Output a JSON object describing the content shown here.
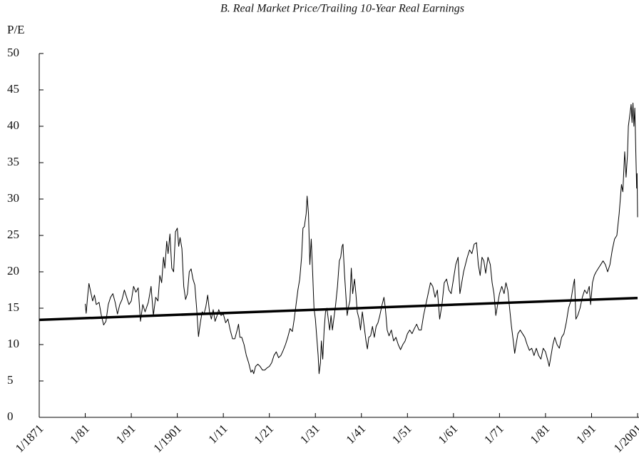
{
  "chart_data": {
    "type": "line",
    "title": "B. Real Market Price/Trailing 10-Year Real Earnings",
    "y_label": "P/E",
    "xlim": [
      1871,
      2001
    ],
    "ylim": [
      0,
      50
    ],
    "yticks": [
      0,
      5,
      10,
      15,
      20,
      25,
      30,
      35,
      40,
      45,
      50
    ],
    "xticks": [
      {
        "value": 1871,
        "label": "1/1871"
      },
      {
        "value": 1881,
        "label": "1/81"
      },
      {
        "value": 1891,
        "label": "1/91"
      },
      {
        "value": 1901,
        "label": "1/1901"
      },
      {
        "value": 1911,
        "label": "1/11"
      },
      {
        "value": 1921,
        "label": "1/21"
      },
      {
        "value": 1931,
        "label": "1/31"
      },
      {
        "value": 1941,
        "label": "1/41"
      },
      {
        "value": 1951,
        "label": "1/51"
      },
      {
        "value": 1961,
        "label": "1/61"
      },
      {
        "value": 1971,
        "label": "1/71"
      },
      {
        "value": 1981,
        "label": "1/81"
      },
      {
        "value": 1991,
        "label": "1/91"
      },
      {
        "value": 2001,
        "label": "1/2001"
      }
    ],
    "series": [
      {
        "color": "#000000",
        "width": 1,
        "x": [
          1881.0,
          1881.2,
          1881.5,
          1881.8,
          1882.2,
          1882.6,
          1883,
          1883.4,
          1884,
          1884.5,
          1885,
          1885.5,
          1886,
          1886.5,
          1887,
          1887.5,
          1888,
          1888.5,
          1889,
          1889.5,
          1890,
          1890.5,
          1891,
          1891.5,
          1892,
          1892.5,
          1893,
          1893.5,
          1894,
          1894.7,
          1895.3,
          1895.8,
          1896.3,
          1896.8,
          1897.2,
          1897.6,
          1898,
          1898.3,
          1898.7,
          1899,
          1899.4,
          1899.8,
          1900.2,
          1900.6,
          1901,
          1901.3,
          1901.6,
          1902,
          1902.4,
          1902.8,
          1903.2,
          1903.6,
          1904,
          1904.4,
          1904.8,
          1905.2,
          1905.6,
          1906,
          1906.4,
          1906.8,
          1907.2,
          1907.6,
          1908,
          1908.4,
          1908.8,
          1909.2,
          1909.6,
          1910,
          1910.5,
          1911,
          1911.5,
          1912,
          1912.5,
          1913,
          1913.5,
          1914,
          1914.3,
          1914.6,
          1915,
          1915.5,
          1916,
          1916.5,
          1917,
          1917.3,
          1917.6,
          1918,
          1918.5,
          1919,
          1919.5,
          1920,
          1920.5,
          1921,
          1921.5,
          1922,
          1922.5,
          1923,
          1923.5,
          1924,
          1924.5,
          1925,
          1925.5,
          1926,
          1926.4,
          1926.8,
          1927.2,
          1927.6,
          1928,
          1928.3,
          1928.6,
          1929,
          1929.2,
          1929.5,
          1929.8,
          1930.1,
          1930.4,
          1930.7,
          1931,
          1931.3,
          1931.6,
          1931.8,
          1932.1,
          1932.3,
          1932.6,
          1932.9,
          1933.2,
          1933.5,
          1933.8,
          1934.1,
          1934.4,
          1934.7,
          1935,
          1935.4,
          1935.8,
          1936.2,
          1936.5,
          1936.8,
          1937,
          1937.3,
          1937.6,
          1937.9,
          1938.2,
          1938.5,
          1938.8,
          1939.1,
          1939.5,
          1939.8,
          1940.1,
          1940.5,
          1940.8,
          1941.2,
          1941.6,
          1942,
          1942.3,
          1942.6,
          1943,
          1943.4,
          1943.8,
          1944.2,
          1944.6,
          1945,
          1945.5,
          1945.9,
          1946.2,
          1946.6,
          1947,
          1947.5,
          1948,
          1948.5,
          1949,
          1949.5,
          1950,
          1950.5,
          1951,
          1951.5,
          1952,
          1952.5,
          1953,
          1953.5,
          1954,
          1954.5,
          1955,
          1955.5,
          1956,
          1956.5,
          1957,
          1957.5,
          1958,
          1958.5,
          1959,
          1959.5,
          1960,
          1960.5,
          1961,
          1961.5,
          1962,
          1962.4,
          1962.8,
          1963.2,
          1963.6,
          1964,
          1964.5,
          1965,
          1965.5,
          1966,
          1966.4,
          1966.8,
          1967.2,
          1967.6,
          1968,
          1968.5,
          1969,
          1969.4,
          1969.8,
          1970.2,
          1970.6,
          1971,
          1971.5,
          1972,
          1972.4,
          1972.8,
          1973.2,
          1973.6,
          1974,
          1974.3,
          1974.6,
          1975,
          1975.5,
          1976,
          1976.5,
          1977,
          1977.5,
          1978,
          1978.5,
          1979,
          1979.5,
          1980,
          1980.5,
          1981,
          1981.5,
          1981.8,
          1982.2,
          1982.6,
          1983,
          1983.5,
          1984,
          1984.5,
          1985,
          1985.5,
          1986,
          1986.5,
          1987,
          1987.3,
          1987.6,
          1988,
          1988.5,
          1989,
          1989.5,
          1990,
          1990.5,
          1990.8,
          1991.2,
          1991.6,
          1992,
          1992.5,
          1993,
          1993.5,
          1994,
          1994.5,
          1995,
          1995.5,
          1996,
          1996.5,
          1997,
          1997.5,
          1997.8,
          1998.2,
          1998.5,
          1998.8,
          1999,
          1999.3,
          1999.6,
          1999.8,
          2000,
          2000.2,
          2000.4,
          2000.6,
          2000.8,
          2000.9,
          2001.0
        ],
        "values": [
          15.6,
          14.3,
          16.5,
          18.4,
          17.2,
          16.0,
          16.8,
          15.5,
          15.8,
          14.0,
          12.7,
          13.2,
          15.5,
          16.5,
          17.0,
          15.8,
          14.2,
          15.5,
          16.2,
          17.5,
          16.5,
          15.5,
          16.0,
          18.0,
          17.2,
          17.8,
          13.2,
          15.5,
          14.5,
          15.8,
          18.0,
          14.0,
          16.5,
          16.0,
          19.5,
          18.5,
          22.0,
          20.5,
          24.2,
          22.5,
          25.2,
          20.5,
          20.0,
          25.5,
          26.0,
          23.5,
          24.7,
          23.2,
          18.0,
          16.2,
          17.0,
          20.0,
          20.4,
          19.0,
          18.2,
          15.0,
          11.1,
          13.0,
          14.5,
          14.2,
          15.2,
          16.8,
          14.5,
          13.5,
          14.8,
          13.2,
          13.9,
          14.8,
          14.0,
          14.2,
          13.0,
          13.5,
          12.0,
          10.8,
          10.8,
          12.0,
          12.8,
          11.0,
          11.0,
          10.0,
          8.5,
          7.5,
          6.2,
          6.5,
          6.0,
          7.0,
          7.3,
          7.0,
          6.5,
          6.5,
          6.8,
          7.0,
          7.5,
          8.5,
          9.0,
          8.2,
          8.5,
          9.2,
          10.0,
          11.0,
          12.2,
          11.8,
          13.5,
          15.5,
          17.5,
          19.0,
          22.0,
          26.0,
          26.2,
          28.0,
          30.4,
          28.0,
          21.0,
          24.5,
          20.0,
          15.0,
          13.5,
          11.0,
          8.5,
          6.0,
          7.5,
          10.5,
          8.0,
          12.0,
          14.5,
          15.0,
          13.5,
          12.0,
          14.0,
          12.0,
          13.5,
          15.5,
          18.0,
          21.5,
          22.0,
          23.5,
          23.8,
          20.0,
          17.0,
          14.0,
          15.2,
          16.0,
          20.5,
          17.0,
          19.0,
          17.0,
          14.5,
          13.5,
          12.0,
          14.5,
          12.5,
          10.5,
          9.4,
          11.0,
          11.2,
          12.5,
          11.0,
          12.5,
          13.0,
          14.0,
          15.5,
          16.5,
          15.0,
          12.0,
          11.2,
          12.0,
          10.5,
          11.0,
          10.0,
          9.3,
          10.0,
          10.5,
          11.5,
          12.0,
          11.5,
          12.2,
          12.8,
          12.0,
          12.0,
          14.0,
          15.5,
          17.0,
          18.5,
          18.0,
          16.5,
          17.5,
          13.5,
          15.5,
          18.5,
          19.0,
          17.5,
          17.0,
          19.0,
          21.0,
          22.0,
          17.0,
          18.5,
          20.0,
          21.0,
          22.0,
          23.0,
          22.5,
          23.8,
          24.0,
          21.0,
          19.5,
          22.0,
          21.5,
          19.8,
          22.0,
          21.0,
          18.5,
          17.0,
          14.0,
          15.5,
          17.0,
          18.0,
          17.0,
          18.5,
          17.5,
          15.0,
          12.5,
          10.5,
          8.8,
          10.0,
          11.5,
          12.0,
          11.5,
          11.0,
          10.0,
          9.2,
          9.5,
          8.5,
          9.5,
          8.5,
          8.0,
          9.5,
          9.0,
          7.8,
          7.0,
          8.5,
          10.0,
          11.0,
          10.0,
          9.5,
          11.0,
          11.5,
          13.0,
          15.0,
          16.0,
          18.0,
          19.0,
          13.5,
          14.0,
          15.0,
          16.5,
          17.5,
          17.0,
          18.0,
          15.5,
          18.5,
          19.5,
          20.0,
          20.5,
          21.0,
          21.5,
          21.0,
          20.0,
          21.0,
          23.0,
          24.5,
          25.0,
          28.0,
          32.0,
          31.0,
          36.5,
          33.0,
          36.0,
          40.0,
          41.5,
          43.0,
          40.5,
          43.2,
          40.0,
          42.5,
          37.0,
          31.5,
          33.5,
          27.5
        ]
      },
      {
        "color": "#000000",
        "width": 3.5,
        "x": [
          1871,
          2001
        ],
        "values": [
          13.4,
          16.4
        ]
      }
    ]
  }
}
